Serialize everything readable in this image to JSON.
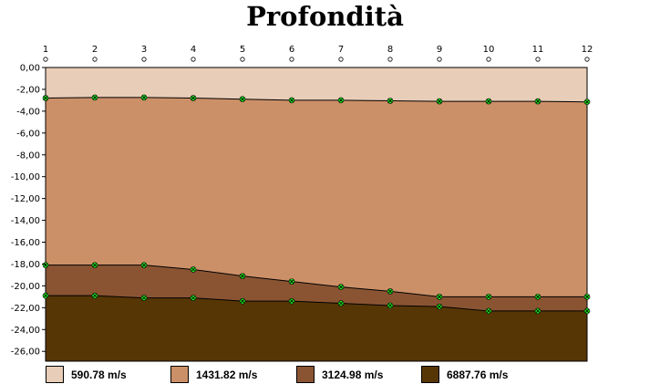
{
  "chart_data": {
    "type": "area",
    "title": "Profondità",
    "x": [
      1,
      2,
      3,
      4,
      5,
      6,
      7,
      8,
      9,
      10,
      11,
      12
    ],
    "x_tick_labels": [
      "1",
      "2",
      "3",
      "4",
      "5",
      "6",
      "7",
      "8",
      "9",
      "10",
      "11",
      "12"
    ],
    "ylim": [
      -26.9,
      0
    ],
    "y_ticks": [
      0,
      -2,
      -4,
      -6,
      -8,
      -10,
      -12,
      -14,
      -16,
      -18,
      -20,
      -22,
      -24,
      -26
    ],
    "y_tick_labels": [
      "0,00",
      "-2,00",
      "-4,00",
      "-6,00",
      "-8,00",
      "-10,00",
      "-12,00",
      "-14,00",
      "-16,00",
      "-18,00",
      "-20,00",
      "-22,00",
      "-24,00",
      "-26,00"
    ],
    "interfaces": [
      {
        "name": "interface-1",
        "values": [
          -2.8,
          -2.75,
          -2.75,
          -2.8,
          -2.9,
          -3.0,
          -3.0,
          -3.05,
          -3.1,
          -3.1,
          -3.1,
          -3.15
        ]
      },
      {
        "name": "interface-2",
        "values": [
          -18.1,
          -18.1,
          -18.1,
          -18.5,
          -19.1,
          -19.6,
          -20.1,
          -20.5,
          -21.0,
          -21.0,
          -21.0,
          -21.0
        ]
      },
      {
        "name": "interface-3",
        "values": [
          -20.9,
          -20.9,
          -21.1,
          -21.1,
          -21.4,
          -21.4,
          -21.6,
          -21.8,
          -21.9,
          -22.3,
          -22.3,
          -22.3
        ]
      }
    ],
    "layers": [
      {
        "name": "590.78 m/s",
        "color": "#e8cdb8"
      },
      {
        "name": "1431.82 m/s",
        "color": "#cc9068"
      },
      {
        "name": "3124.98 m/s",
        "color": "#8a5433"
      },
      {
        "name": "6887.76 m/s",
        "color": "#573605"
      }
    ],
    "marker_color": "#22ee22",
    "grid": false,
    "legend_position": "bottom"
  }
}
